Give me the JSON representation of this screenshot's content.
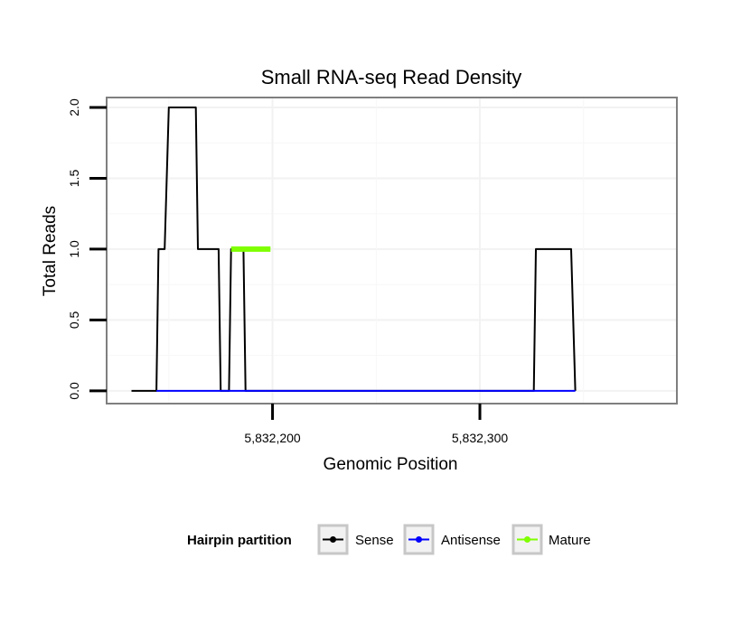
{
  "chart_data": {
    "type": "line",
    "title": "Small RNA-seq Read Density",
    "xlabel": "Genomic Position",
    "ylabel": "Total Reads",
    "xlim": [
      5832120,
      5832395
    ],
    "ylim": [
      -0.09,
      2.07
    ],
    "x_ticks": [
      5832200,
      5832300
    ],
    "x_tick_labels": [
      "5,832,200",
      "5,832,300"
    ],
    "y_ticks": [
      0,
      0.5,
      1,
      1.5,
      2
    ],
    "y_tick_labels": [
      "0.0",
      "0.5",
      "1.0",
      "1.5",
      "2.0"
    ],
    "grid": true,
    "legend": {
      "title": "Hairpin partition",
      "position": "bottom",
      "entries": [
        "Sense",
        "Antisense",
        "Mature"
      ]
    },
    "series": [
      {
        "name": "Sense",
        "color": "#000000",
        "x": [
          5832132,
          5832144,
          5832145,
          5832147,
          5832148,
          5832150,
          5832163,
          5832164,
          5832174,
          5832175,
          5832176,
          5832179,
          5832180,
          5832186,
          5832187,
          5832198,
          5832199,
          5832320,
          5832326,
          5832327,
          5832344,
          5832346
        ],
        "y": [
          0,
          0,
          1,
          1,
          1,
          2,
          2,
          1,
          1,
          0,
          0,
          0,
          1,
          1,
          0,
          0,
          0,
          0,
          0,
          1,
          1,
          0
        ]
      },
      {
        "name": "Antisense",
        "color": "#0000ff",
        "x": [
          5832144,
          5832175,
          5832180,
          5832199,
          5832326,
          5832346
        ],
        "y": [
          0,
          0,
          0,
          0,
          0,
          0
        ]
      },
      {
        "name": "Mature",
        "color": "#7fff00",
        "x": [
          5832180,
          5832199
        ],
        "y": [
          1,
          1
        ]
      }
    ]
  }
}
